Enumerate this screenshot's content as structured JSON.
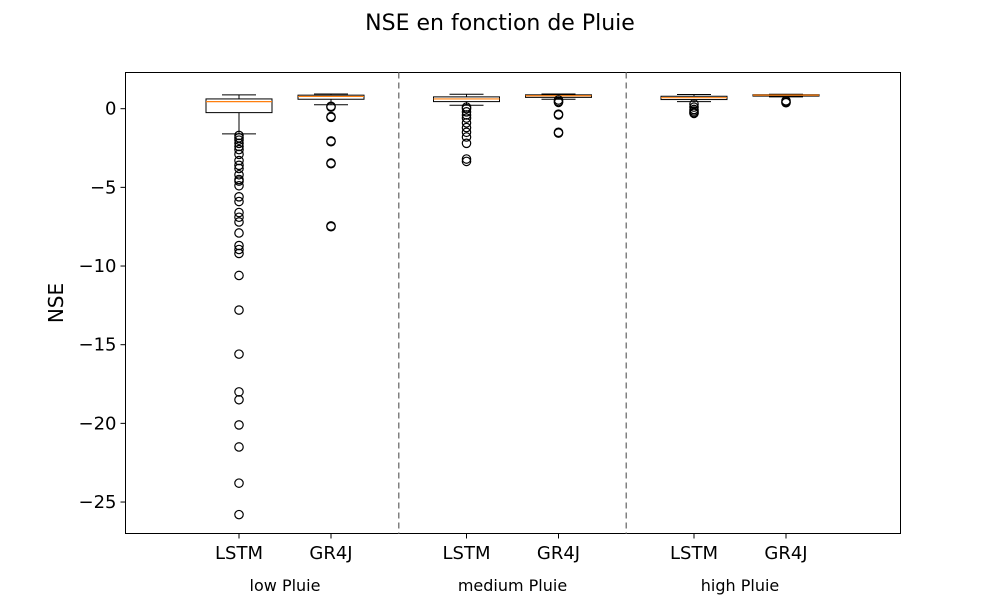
{
  "chart_data": {
    "type": "box",
    "title": "NSE en fonction de Pluie",
    "ylabel": "NSE",
    "xlabel": "",
    "ylim": [
      -27.0,
      2.3
    ],
    "yticks": [
      0,
      -5,
      -10,
      -15,
      -20,
      -25
    ],
    "ytick_labels": [
      "0",
      "−5",
      "−10",
      "−15",
      "−20",
      "−25"
    ],
    "grid": false,
    "groups": [
      {
        "label": "low Pluie",
        "boxes": [
          {
            "name": "LSTM",
            "q1": -0.25,
            "median": 0.45,
            "q3": 0.62,
            "whisker_low": -1.6,
            "whisker_high": 0.88,
            "outliers": [
              -1.7,
              -1.85,
              -2.0,
              -2.2,
              -2.4,
              -2.6,
              -2.9,
              -3.3,
              -3.6,
              -3.8,
              -4.2,
              -4.5,
              -4.6,
              -4.9,
              -5.6,
              -5.9,
              -6.6,
              -6.9,
              -7.2,
              -7.9,
              -8.7,
              -8.95,
              -9.2,
              -10.6,
              -12.8,
              -15.6,
              -18.0,
              -18.5,
              -20.1,
              -21.5,
              -23.8,
              -25.8
            ]
          },
          {
            "name": "GR4J",
            "q1": 0.6,
            "median": 0.78,
            "q3": 0.86,
            "whisker_low": 0.25,
            "whisker_high": 0.93,
            "outliers": [
              0.1,
              0.15,
              -0.5,
              -0.55,
              -2.05,
              -2.1,
              -3.45,
              -3.5,
              -7.45,
              -7.5
            ]
          }
        ]
      },
      {
        "label": "medium Pluie",
        "boxes": [
          {
            "name": "LSTM",
            "q1": 0.45,
            "median": 0.62,
            "q3": 0.75,
            "whisker_low": 0.22,
            "whisker_high": 0.92,
            "outliers": [
              0.1,
              0.0,
              -0.2,
              -0.4,
              -0.6,
              -0.9,
              -1.2,
              -1.5,
              -1.8,
              -2.2,
              -3.2,
              -3.35
            ]
          },
          {
            "name": "GR4J",
            "q1": 0.72,
            "median": 0.82,
            "q3": 0.88,
            "whisker_low": 0.6,
            "whisker_high": 0.93,
            "outliers": [
              0.55,
              0.45,
              0.4,
              -0.35,
              -0.4,
              -1.5,
              -1.55
            ]
          }
        ]
      },
      {
        "label": "high Pluie",
        "boxes": [
          {
            "name": "LSTM",
            "q1": 0.58,
            "median": 0.7,
            "q3": 0.79,
            "whisker_low": 0.45,
            "whisker_high": 0.9,
            "outliers": [
              0.3,
              0.1,
              -0.05,
              -0.15,
              -0.25,
              -0.3
            ]
          },
          {
            "name": "GR4J",
            "q1": 0.8,
            "median": 0.86,
            "q3": 0.89,
            "whisker_low": 0.75,
            "whisker_high": 0.92,
            "outliers": [
              0.5,
              0.42,
              0.38
            ]
          }
        ]
      }
    ],
    "colors": {
      "median": "#ff7f0e",
      "box": "#000000",
      "separator": "#808080"
    }
  }
}
